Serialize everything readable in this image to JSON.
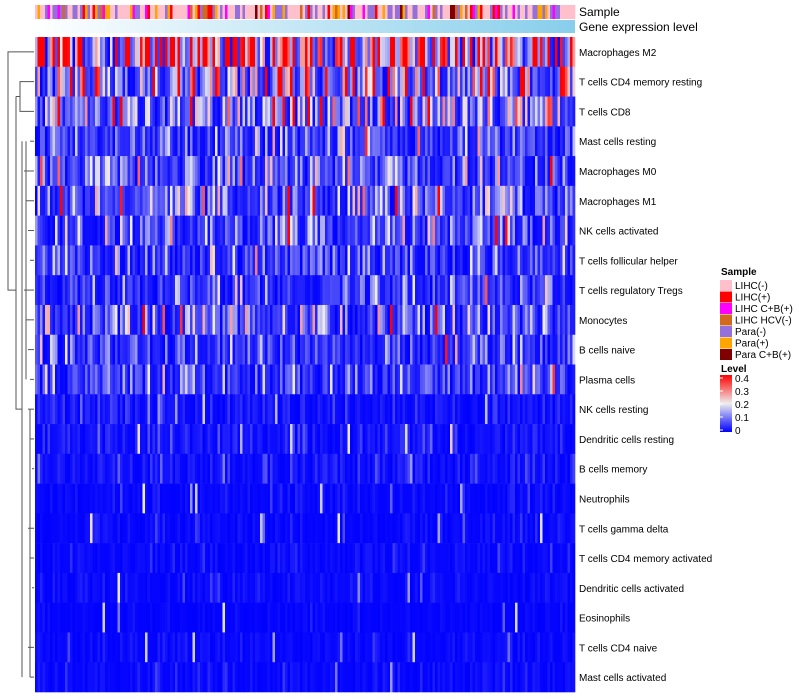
{
  "chart_data": {
    "type": "heatmap",
    "annotations": {
      "sample_label": "Sample",
      "gene_label": "Gene expression level"
    },
    "rows": [
      "Macrophages M2",
      "T cells CD4 memory resting",
      "T cells CD8",
      "Mast cells resting",
      "Macrophages M0",
      "Macrophages M1",
      "NK cells activated",
      "T cells follicular helper",
      "T cells regulatory  Tregs",
      "Monocytes",
      "B cells naive",
      "Plasma cells",
      "NK cells resting",
      "Dendritic cells resting",
      "B cells memory",
      "Neutrophils",
      "T cells gamma delta",
      "T cells CD4 memory activated",
      "Dendritic cells activated",
      "Eosinophils",
      "T cells CD4 naive",
      "Mast cells activated"
    ],
    "row_mean_levels": [
      0.33,
      0.16,
      0.15,
      0.08,
      0.09,
      0.09,
      0.07,
      0.06,
      0.05,
      0.1,
      0.06,
      0.08,
      0.02,
      0.02,
      0.02,
      0.01,
      0.01,
      0.01,
      0.01,
      0.005,
      0.01,
      0.01
    ],
    "sample_legend": {
      "title": "Sample",
      "entries": [
        {
          "label": "LIHC(-)",
          "color": "#FFC0CB"
        },
        {
          "label": "LIHC(+)",
          "color": "#FF0000"
        },
        {
          "label": "LIHC C+B(+)",
          "color": "#FF00FF"
        },
        {
          "label": "LIHC HCV(-)",
          "color": "#D2691E"
        },
        {
          "label": "Para(-)",
          "color": "#9370DB"
        },
        {
          "label": "Para(+)",
          "color": "#FFA500"
        },
        {
          "label": "Para C+B(+)",
          "color": "#800000"
        }
      ]
    },
    "level_legend": {
      "title": "Level",
      "ticks": [
        "0.4",
        "0.3",
        "0.2",
        "0.1",
        "0"
      ],
      "range": [
        0,
        0.4
      ],
      "colors": [
        "#0000FF",
        "#EEEEEE",
        "#FF0000"
      ]
    },
    "gene_color": "#87CEEB"
  }
}
